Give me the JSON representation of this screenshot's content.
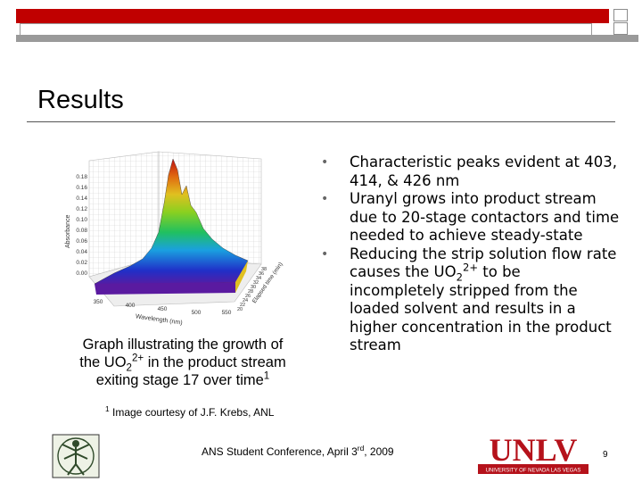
{
  "slide": {
    "title": "Results",
    "graph_caption_line1": "Graph illustrating the growth of",
    "graph_caption_line2_pre": "the UO",
    "graph_caption_line2_sub": "2",
    "graph_caption_line2_sup": "2+",
    "graph_caption_line2_post": " in the product stream",
    "graph_caption_line3": "exiting stage 17 over time",
    "graph_caption_line3_sup": "1",
    "bullets": [
      {
        "text": "Characteristic peaks evident at 403, 414, & 426 nm"
      },
      {
        "text": "Uranyl grows into product stream due to 20-stage contactors and time needed to achieve steady-state"
      },
      {
        "text_pre": "Reducing the strip solution flow rate causes the UO",
        "sub": "2",
        "sup": "2+",
        "text_post": " to be incompletely stripped from the loaded solvent and results in a higher concentration in the product stream"
      }
    ],
    "footnote_sup": "1",
    "footnote_text": " Image courtesy of J.F. Krebs, ANL",
    "footer_pre": "ANS Student Conference, April 3",
    "footer_sup": "rd",
    "footer_post": ", 2009",
    "page_number": "9",
    "logo_text": "UNLV",
    "logo_subtext": "UNIVERSITY OF NEVADA LAS VEGAS"
  },
  "plot_labels": {
    "y_axis_label": "Absorbance",
    "x_axis_label": "Wavelength (nm)",
    "z_axis_label": "Elapsed time (min)",
    "y_ticks": [
      "0.18",
      "0.16",
      "0.14",
      "0.12",
      "0.10",
      "0.08",
      "0.06",
      "0.04",
      "0.02",
      "0.00"
    ],
    "x_ticks": [
      "350",
      "400",
      "450",
      "500",
      "550"
    ],
    "z_ticks": [
      "20",
      "22",
      "24",
      "26",
      "28",
      "30",
      "32",
      "34",
      "36",
      "38"
    ]
  },
  "colors": {
    "accent_red": "#c00000",
    "bar_gray": "#9a9a9a",
    "unlv_red": "#b5121b"
  }
}
